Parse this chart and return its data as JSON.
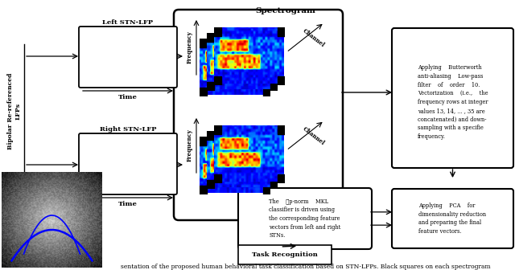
{
  "title": "Spectrogram",
  "caption": "sentation of the proposed human behavioral task classification based on STN-LFPs. Black squares on each spectrogram",
  "bg_color": "#ffffff",
  "left_lfp_label": "Left STN-LFP",
  "right_lfp_label": "Right STN-LFP",
  "time_label": "Time",
  "freq_label": "Frequency",
  "channel_label": "Channel",
  "bipolar_label": "Bipolar Re-referenced\nLFPs",
  "box1_text": "Applying    Butterworth\nanti-aliasing    Low-pass\nfilter    of    order    10.\nVectorization    (i.e.,    the\nfrequency rows at integer\nvalues 13, 14, ... , 35 are\nconcatenated) and down-\nsampling with a specifie\nfrequency.",
  "box2_text": "Applying    PCA    for\ndimensionality reduction\nand preparing the final\nfeature vectors.",
  "box3_text": "The    ℓp-norm    MKL\nclassifier is driven using\nthe corresponding feature\nvectors from left and right\nSTNs.",
  "task_label": "Task Recognition",
  "signal_color": "#0000cc"
}
